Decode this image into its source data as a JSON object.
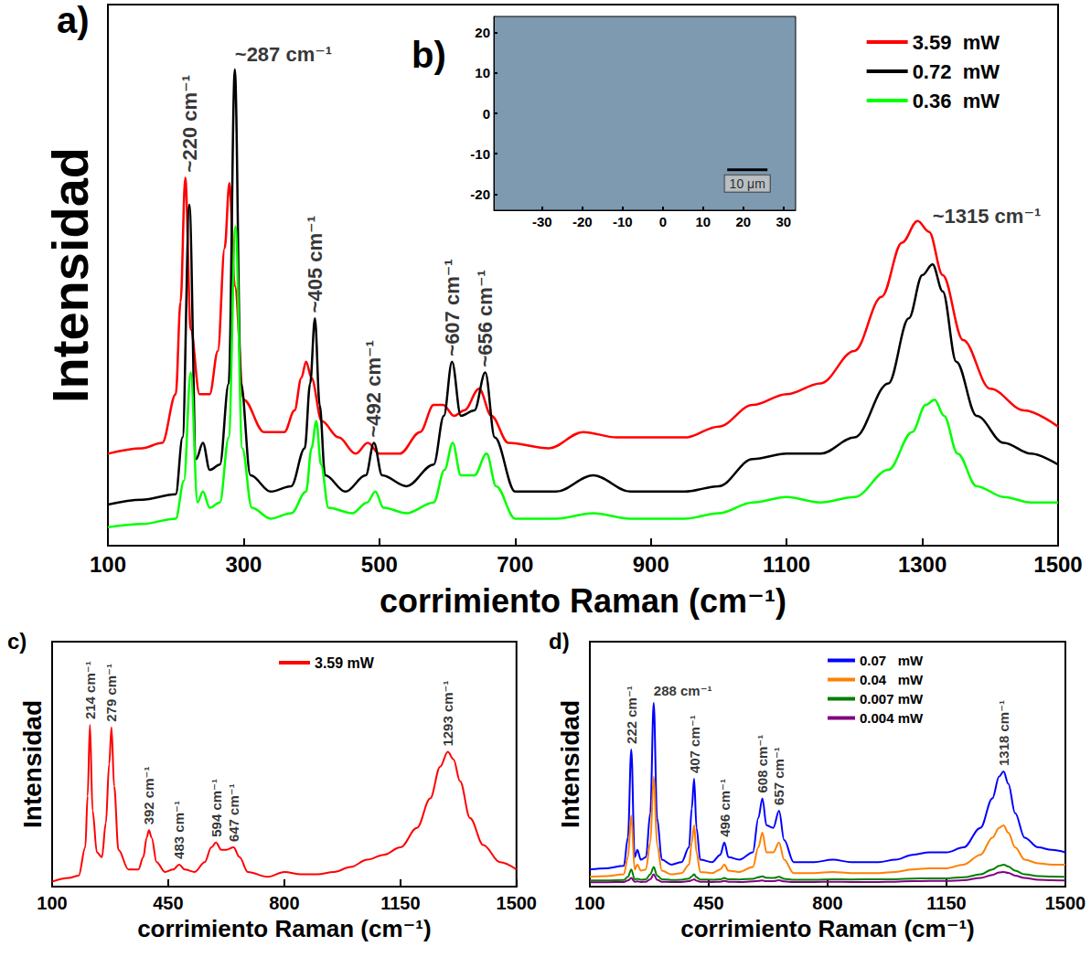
{
  "chart_data": [
    {
      "panel": "a)",
      "type": "line",
      "x_label": "corrimiento Raman (cm⁻¹)",
      "y_label": "Intensidad",
      "xlim": [
        100,
        1500
      ],
      "xticks": [
        100,
        300,
        500,
        700,
        900,
        1100,
        1300,
        1500
      ],
      "ylim": [
        0,
        100
      ],
      "tick_labels": "x",
      "legend": "upper right",
      "series": [
        {
          "name": "3.59  mW",
          "color": "#ff0000",
          "x": [
            100,
            150,
            180,
            200,
            207,
            214,
            222,
            235,
            250,
            262,
            272,
            279,
            287,
            300,
            330,
            360,
            375,
            385,
            392,
            400,
            415,
            440,
            465,
            483,
            500,
            530,
            560,
            580,
            594,
            610,
            625,
            647,
            665,
            690,
            750,
            800,
            850,
            900,
            950,
            1000,
            1050,
            1100,
            1150,
            1200,
            1240,
            1270,
            1293,
            1310,
            1330,
            1360,
            1400,
            1450,
            1500
          ],
          "values": [
            17,
            18,
            19,
            28,
            45,
            68,
            40,
            28,
            28,
            36,
            55,
            67,
            48,
            27,
            21,
            21,
            25,
            31,
            34,
            31,
            23,
            20,
            17,
            19,
            17,
            17,
            21,
            26,
            26,
            24,
            25,
            29,
            24,
            19,
            18,
            21,
            20,
            20,
            20,
            22,
            26,
            28,
            30,
            36,
            46,
            56,
            60,
            58,
            50,
            38,
            29,
            25,
            22
          ]
        },
        {
          "name": "0.72  mW",
          "color": "#000000",
          "x": [
            100,
            150,
            200,
            210,
            220,
            230,
            240,
            250,
            265,
            278,
            287,
            296,
            310,
            340,
            370,
            390,
            398,
            405,
            412,
            420,
            450,
            480,
            492,
            504,
            540,
            580,
            595,
            607,
            620,
            640,
            656,
            670,
            700,
            760,
            815,
            870,
            950,
            1000,
            1050,
            1100,
            1150,
            1200,
            1250,
            1280,
            1300,
            1315,
            1330,
            1350,
            1380,
            1420,
            1460,
            1500
          ],
          "values": [
            7.6,
            8.5,
            9.5,
            20,
            63,
            16,
            19,
            14,
            15,
            30,
            88,
            30,
            13,
            10,
            11,
            18,
            30,
            42,
            26,
            13,
            10,
            13,
            19,
            13,
            11,
            15,
            24,
            34,
            24,
            25,
            32,
            20,
            10,
            10,
            13,
            10,
            10,
            11,
            16,
            17,
            17,
            20,
            30,
            42,
            50,
            52,
            47,
            34,
            24,
            19,
            17,
            15
          ]
        },
        {
          "name": "0.36  mW",
          "color": "#00ff00",
          "x": [
            100,
            150,
            200,
            212,
            222,
            232,
            240,
            250,
            265,
            278,
            288,
            298,
            312,
            340,
            370,
            392,
            400,
            407,
            414,
            425,
            460,
            482,
            494,
            506,
            540,
            580,
            596,
            608,
            620,
            640,
            658,
            672,
            700,
            760,
            815,
            870,
            950,
            1000,
            1050,
            1100,
            1150,
            1200,
            1250,
            1285,
            1305,
            1318,
            1332,
            1352,
            1380,
            1420,
            1460,
            1500
          ],
          "values": [
            3.4,
            4,
            5,
            12,
            32,
            8,
            10,
            7,
            8,
            20,
            59,
            18,
            7,
            5,
            6,
            10,
            18,
            23,
            15,
            7,
            6,
            8,
            10,
            7,
            6,
            8,
            14,
            19,
            13,
            13,
            17,
            11,
            5,
            5,
            6,
            5,
            5,
            6,
            8,
            9,
            8,
            9,
            14,
            21,
            26,
            27,
            24,
            17,
            11,
            9,
            8,
            8
          ]
        }
      ],
      "annotations": [
        {
          "text": "~220 cm⁻¹",
          "x": 220
        },
        {
          "text": "~287 cm⁻¹",
          "x": 287
        },
        {
          "text": "~405 cm⁻¹",
          "x": 405
        },
        {
          "text": "~492 cm⁻¹",
          "x": 492
        },
        {
          "text": "~607 cm⁻¹",
          "x": 607
        },
        {
          "text": "~656 cm⁻¹",
          "x": 656
        },
        {
          "text": "~1315 cm⁻¹",
          "x": 1315
        }
      ]
    },
    {
      "panel": "b)",
      "type": "image",
      "xlim": [
        -42,
        33
      ],
      "xticks": [
        -30,
        -20,
        -10,
        0,
        10,
        20,
        30
      ],
      "ylim": [
        -24,
        24
      ],
      "yticks": [
        -20,
        -10,
        0,
        10,
        20
      ],
      "scale_bar": {
        "x": [
          16,
          26
        ],
        "y": -14,
        "label": "10 μm"
      }
    },
    {
      "panel": "c)",
      "type": "line",
      "x_label": "corrimiento Raman (cm⁻¹)",
      "y_label": "Intensidad",
      "xlim": [
        100,
        1500
      ],
      "xticks": [
        100,
        450,
        800,
        1150,
        1500
      ],
      "ylim": [
        0,
        100
      ],
      "tick_labels": "x",
      "legend": "upper center",
      "series": [
        {
          "name": "3.59 mW",
          "color": "#ff0000",
          "x": [
            100,
            150,
            180,
            200,
            207,
            214,
            222,
            235,
            250,
            262,
            272,
            279,
            287,
            300,
            330,
            360,
            375,
            385,
            392,
            400,
            415,
            440,
            465,
            483,
            500,
            530,
            560,
            580,
            594,
            610,
            625,
            647,
            665,
            690,
            750,
            800,
            850,
            900,
            950,
            1000,
            1050,
            1100,
            1150,
            1200,
            1240,
            1270,
            1293,
            1310,
            1330,
            1360,
            1400,
            1450,
            1500
          ],
          "values": [
            2,
            3.5,
            4.5,
            16,
            37,
            66,
            31,
            14,
            12,
            26,
            50,
            65,
            41,
            15,
            7,
            7,
            12,
            20,
            23,
            20,
            10,
            6,
            7,
            9,
            7,
            6,
            10,
            16,
            18,
            15,
            15,
            16,
            12,
            6,
            4,
            6,
            5,
            5,
            6,
            8,
            11,
            13,
            16,
            24,
            36,
            49,
            55,
            52,
            43,
            28,
            17,
            10,
            7
          ]
        }
      ],
      "annotations": [
        {
          "text": "214 cm⁻¹",
          "x": 214
        },
        {
          "text": "279 cm⁻¹",
          "x": 279
        },
        {
          "text": "392 cm⁻¹",
          "x": 392
        },
        {
          "text": "483 cm⁻¹",
          "x": 483
        },
        {
          "text": "594 cm⁻¹",
          "x": 594
        },
        {
          "text": "647 cm⁻¹",
          "x": 647
        },
        {
          "text": "1293 cm⁻¹",
          "x": 1293
        }
      ]
    },
    {
      "panel": "d)",
      "type": "line",
      "x_label": "corrimiento Raman (cm⁻¹)",
      "y_label": "Intensidad",
      "xlim": [
        100,
        1500
      ],
      "xticks": [
        100,
        450,
        800,
        1150,
        1500
      ],
      "ylim": [
        0,
        100
      ],
      "tick_labels": "x",
      "legend": "upper center",
      "series": [
        {
          "name": "0.07   mW",
          "color": "#0000ff",
          "x": [
            100,
            150,
            200,
            212,
            222,
            232,
            240,
            250,
            265,
            278,
            288,
            298,
            312,
            340,
            370,
            392,
            400,
            407,
            414,
            425,
            460,
            484,
            496,
            508,
            540,
            580,
            596,
            608,
            620,
            640,
            657,
            672,
            700,
            760,
            815,
            870,
            950,
            1000,
            1050,
            1100,
            1150,
            1200,
            1250,
            1285,
            1305,
            1318,
            1332,
            1352,
            1380,
            1420,
            1460,
            1500
          ],
          "values": [
            7,
            7.5,
            8.5,
            20,
            56,
            12,
            15,
            11,
            12,
            30,
            75,
            28,
            11,
            9,
            10,
            16,
            32,
            44,
            24,
            11,
            10,
            13,
            18,
            12,
            11,
            14,
            28,
            36,
            25,
            24,
            31,
            19,
            10,
            10,
            11,
            10,
            10,
            11,
            13,
            14,
            14,
            16,
            24,
            36,
            45,
            47,
            42,
            30,
            20,
            16,
            15,
            14
          ]
        },
        {
          "name": "0.04   mW",
          "color": "#ff8000",
          "x": [
            100,
            150,
            200,
            212,
            222,
            232,
            240,
            250,
            265,
            278,
            288,
            298,
            312,
            340,
            370,
            392,
            400,
            407,
            414,
            425,
            460,
            484,
            496,
            508,
            540,
            580,
            596,
            608,
            620,
            640,
            657,
            672,
            700,
            760,
            815,
            870,
            950,
            1000,
            1050,
            1100,
            1150,
            1200,
            1250,
            1285,
            1305,
            1318,
            1332,
            1352,
            1380,
            1420,
            1460,
            1500
          ],
          "values": [
            4,
            4.3,
            5,
            12,
            29,
            7,
            9,
            6.5,
            7,
            18,
            45,
            17,
            6.5,
            5,
            5.5,
            9,
            18,
            25,
            14,
            6,
            5.5,
            7,
            9,
            6.5,
            6,
            8,
            16,
            22,
            14,
            14,
            18,
            11,
            5.5,
            5.5,
            6,
            5.5,
            5.5,
            6,
            7,
            7.5,
            7.5,
            9,
            13,
            20,
            24,
            25,
            22,
            16,
            11,
            9.5,
            9,
            9
          ]
        },
        {
          "name": "0.007 mW",
          "color": "#008000",
          "x": [
            100,
            150,
            200,
            212,
            222,
            232,
            240,
            250,
            265,
            278,
            288,
            298,
            312,
            340,
            370,
            392,
            400,
            407,
            414,
            425,
            460,
            484,
            496,
            508,
            540,
            580,
            596,
            608,
            620,
            640,
            657,
            672,
            700,
            760,
            815,
            870,
            950,
            1000,
            1050,
            1100,
            1150,
            1200,
            1250,
            1285,
            1305,
            1318,
            1332,
            1352,
            1380,
            1420,
            1460,
            1500
          ],
          "values": [
            2.5,
            2.5,
            2.7,
            4,
            7,
            3,
            3.2,
            2.8,
            3,
            5,
            8,
            4.5,
            3,
            2.7,
            2.8,
            3.3,
            4.2,
            5,
            3.8,
            2.9,
            2.8,
            3,
            3.5,
            3,
            2.9,
            3.2,
            3.8,
            4.2,
            3.6,
            3.5,
            4,
            3.2,
            2.8,
            2.8,
            3,
            2.9,
            3,
            3,
            3.3,
            3.4,
            3.4,
            3.8,
            5,
            7,
            8.5,
            9,
            8.2,
            6.5,
            5,
            4.3,
            4.1,
            4
          ]
        },
        {
          "name": "0.004 mW",
          "color": "#800080",
          "x": [
            100,
            150,
            200,
            212,
            222,
            232,
            240,
            250,
            265,
            278,
            288,
            298,
            312,
            340,
            370,
            392,
            400,
            407,
            414,
            425,
            460,
            484,
            496,
            508,
            540,
            580,
            596,
            608,
            620,
            640,
            657,
            672,
            700,
            760,
            815,
            870,
            950,
            1000,
            1050,
            1100,
            1150,
            1200,
            1250,
            1285,
            1305,
            1318,
            1332,
            1352,
            1380,
            1420,
            1460,
            1500
          ],
          "values": [
            1.8,
            1.8,
            1.9,
            2.5,
            3.5,
            2,
            2.1,
            1.9,
            2,
            3,
            5,
            2.8,
            2,
            1.9,
            1.9,
            2.2,
            2.6,
            3,
            2.4,
            2,
            1.9,
            2,
            2.3,
            2,
            1.9,
            2.1,
            2.3,
            2.5,
            2.2,
            2.2,
            2.6,
            2.1,
            1.9,
            1.9,
            2,
            1.9,
            1.9,
            2,
            2.2,
            2.3,
            2.3,
            2.6,
            3.5,
            4.8,
            5.8,
            6,
            5.6,
            4.5,
            3.5,
            2.8,
            2.6,
            2.5
          ]
        }
      ],
      "annotations": [
        {
          "text": "222 cm⁻¹",
          "x": 222
        },
        {
          "text": "288 cm⁻¹",
          "x": 288
        },
        {
          "text": "407 cm⁻¹",
          "x": 407
        },
        {
          "text": "496 cm⁻¹",
          "x": 496
        },
        {
          "text": "608 cm⁻¹",
          "x": 608
        },
        {
          "text": "657 cm⁻¹",
          "x": 657
        },
        {
          "text": "1318 cm⁻¹",
          "x": 1318
        }
      ]
    }
  ]
}
